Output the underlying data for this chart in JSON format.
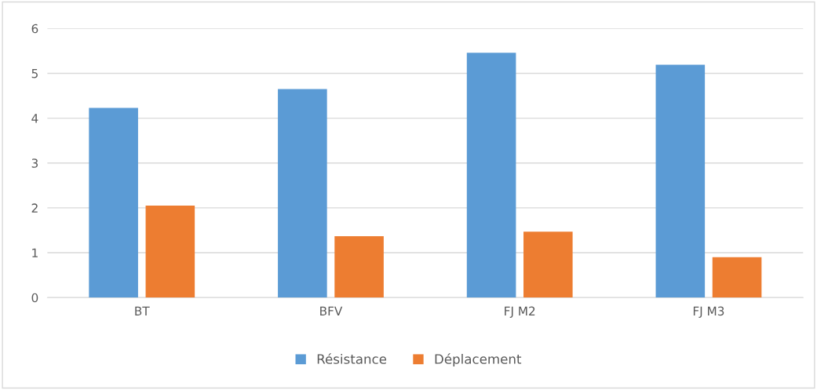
{
  "chart_data": {
    "type": "bar",
    "categories": [
      "BT",
      "BFV",
      "FJ M2",
      "FJ M3"
    ],
    "series": [
      {
        "name": "Résistance",
        "color": "#5b9bd5",
        "values": [
          4.23,
          4.65,
          5.46,
          5.19
        ]
      },
      {
        "name": "Déplacement",
        "color": "#ed7d31",
        "values": [
          2.05,
          1.37,
          1.47,
          0.9
        ]
      }
    ],
    "ylim": [
      0,
      6
    ],
    "yticks": [
      0,
      1,
      2,
      3,
      4,
      5,
      6
    ],
    "grid": "y",
    "legend": "bottom"
  }
}
